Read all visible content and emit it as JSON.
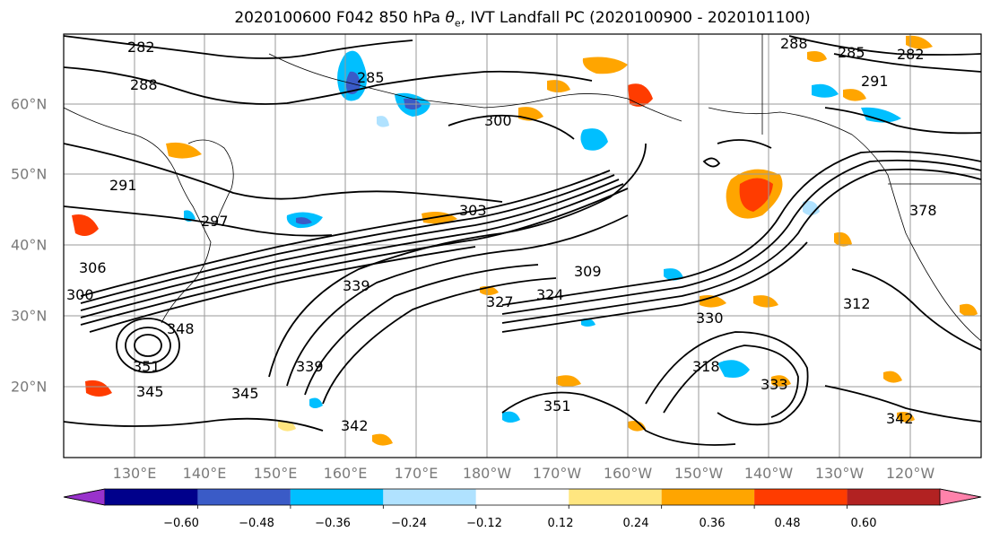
{
  "title_main": "2020100600 F042 850 hPa ",
  "title_theta": "θ",
  "title_theta_sub": "e",
  "title_rest": ", IVT Landfall PC (2020100900 - 2020101100)",
  "map": {
    "lat_ticks": [
      "60°N",
      "50°N",
      "40°N",
      "30°N",
      "20°N"
    ],
    "lon_ticks": [
      "130°E",
      "140°E",
      "150°E",
      "160°E",
      "170°E",
      "180°W",
      "170°W",
      "160°W",
      "150°W",
      "140°W",
      "130°W",
      "120°W"
    ],
    "contour_labels": [
      "282",
      "288",
      "285",
      "300",
      "291",
      "297",
      "300",
      "306",
      "348",
      "351",
      "345",
      "345",
      "339",
      "327",
      "324",
      "309",
      "330",
      "318",
      "342",
      "333",
      "378",
      "288",
      "285",
      "282",
      "291",
      "339",
      "312",
      "303",
      "342",
      "351"
    ]
  },
  "colorbar": {
    "colors": [
      "#9932cc",
      "#00008b",
      "#3a5bc7",
      "#00bfff",
      "#b0e2ff",
      "#ffffff",
      "#ffe680",
      "#ffa500",
      "#ff3c00",
      "#b22222",
      "#ff82ab"
    ],
    "ticks": [
      "−0.60",
      "−0.48",
      "−0.36",
      "−0.24",
      "−0.12",
      "0.12",
      "0.24",
      "0.36",
      "0.48",
      "0.60"
    ]
  },
  "shading_colors": {
    "light_blue": "#b0e2ff",
    "blue": "#00bfff",
    "mid_blue": "#3a5bc7",
    "yellow": "#ffe680",
    "orange": "#ffa500",
    "red_orange": "#ff3c00"
  }
}
